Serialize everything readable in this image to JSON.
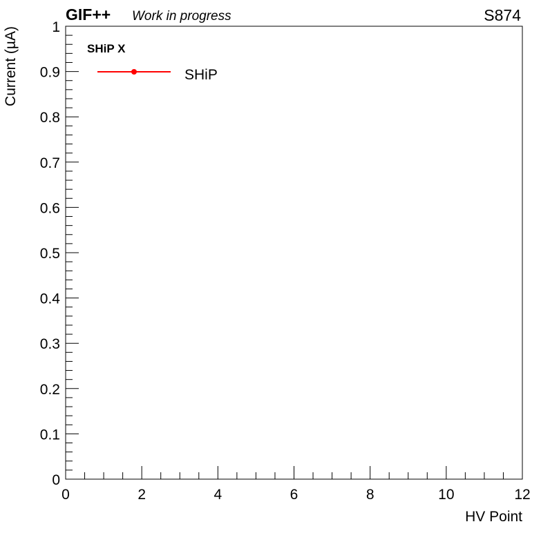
{
  "header": {
    "experiment": "GIF++",
    "status": "Work in progress",
    "chamber": "S874"
  },
  "chart_data": {
    "type": "scatter",
    "title": "",
    "xlabel": "HV Point",
    "ylabel": "Current (µA)",
    "xlim": [
      0,
      12
    ],
    "ylim": [
      0,
      1
    ],
    "x_major_ticks": [
      0,
      2,
      4,
      6,
      8,
      10,
      12
    ],
    "x_tick_labels": [
      "0",
      "2",
      "4",
      "6",
      "8",
      "10",
      "12"
    ],
    "x_minor_step": 0.5,
    "y_major_ticks": [
      0,
      0.1,
      0.2,
      0.3,
      0.4,
      0.5,
      0.6,
      0.7,
      0.8,
      0.9,
      1
    ],
    "y_tick_labels": [
      "0",
      "0.1",
      "0.2",
      "0.3",
      "0.4",
      "0.5",
      "0.6",
      "0.7",
      "0.8",
      "0.9",
      "1"
    ],
    "y_minor_step": 0.02,
    "grid": false,
    "legend": {
      "header": "SHiP X",
      "placement": "top-left",
      "entries": [
        {
          "label": "SHiP",
          "color": "#ff0000",
          "marker": "circle"
        }
      ]
    },
    "series": [
      {
        "name": "SHiP",
        "color": "#ff0000",
        "points": []
      }
    ]
  }
}
